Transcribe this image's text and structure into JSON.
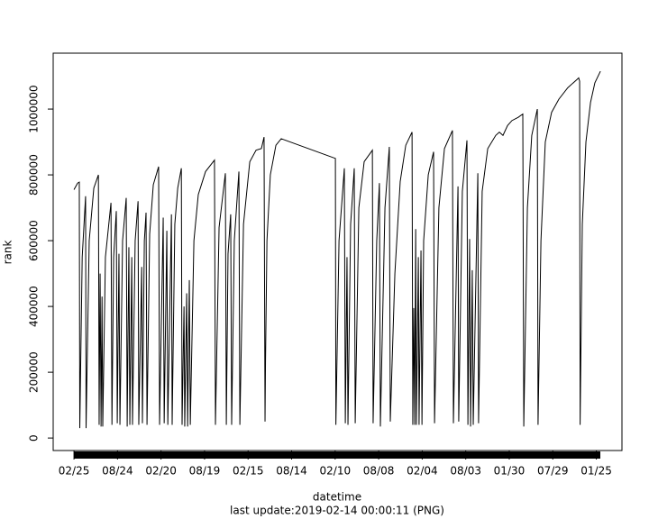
{
  "chart_data": {
    "type": "line",
    "xlabel": "datetime",
    "ylabel": "rank",
    "caption": "last update:2019-02-14 00:00:11 (PNG)",
    "xlim": [
      -86,
      2266
    ],
    "ylim": [
      -38000,
      1170000
    ],
    "xticks": [
      {
        "value": 0,
        "label": "02/25"
      },
      {
        "value": 180,
        "label": "08/24"
      },
      {
        "value": 360,
        "label": "02/20"
      },
      {
        "value": 540,
        "label": "08/19"
      },
      {
        "value": 720,
        "label": "02/15"
      },
      {
        "value": 900,
        "label": "08/14"
      },
      {
        "value": 1080,
        "label": "02/10"
      },
      {
        "value": 1260,
        "label": "08/08"
      },
      {
        "value": 1440,
        "label": "02/04"
      },
      {
        "value": 1620,
        "label": "08/03"
      },
      {
        "value": 1800,
        "label": "01/30"
      },
      {
        "value": 1980,
        "label": "07/29"
      },
      {
        "value": 2160,
        "label": "01/25"
      }
    ],
    "yticks": [
      0,
      200000,
      400000,
      600000,
      800000,
      1000000
    ],
    "series": [
      {
        "color": "#000000",
        "x": [
          0,
          15,
          22,
          24,
          34,
          48,
          50,
          63,
          82,
          101,
          104,
          108,
          112,
          116,
          119,
          130,
          153,
          157,
          164,
          175,
          179,
          186,
          190,
          201,
          216,
          220,
          227,
          231,
          239,
          242,
          253,
          265,
          268,
          280,
          283,
          291,
          298,
          302,
          313,
          328,
          350,
          354,
          369,
          373,
          384,
          388,
          403,
          406,
          417,
          429,
          444,
          447,
          455,
          458,
          466,
          470,
          477,
          481,
          496,
          514,
          544,
          581,
          585,
          600,
          626,
          630,
          637,
          648,
          652,
          663,
          682,
          686,
          701,
          727,
          753,
          775,
          786,
          790,
          792,
          798,
          812,
          835,
          857,
          1081,
          1083,
          1096,
          1118,
          1122,
          1129,
          1133,
          1144,
          1159,
          1163,
          1178,
          1200,
          1234,
          1237,
          1252,
          1263,
          1267,
          1286,
          1304,
          1308,
          1327,
          1349,
          1372,
          1398,
          1401,
          1405,
          1409,
          1413,
          1416,
          1424,
          1427,
          1435,
          1439,
          1446,
          1465,
          1487,
          1491,
          1509,
          1532,
          1565,
          1569,
          1588,
          1591,
          1606,
          1625,
          1629,
          1636,
          1640,
          1647,
          1651,
          1670,
          1673,
          1688,
          1711,
          1744,
          1759,
          1774,
          1793,
          1811,
          1837,
          1856,
          1860,
          1875,
          1893,
          1916,
          1919,
          1931,
          1949,
          1975,
          2005,
          2042,
          2080,
          2087,
          2091,
          2093,
          2102,
          2117,
          2136,
          2154,
          2177
        ],
        "values": [
          755000,
          775000,
          778000,
          30000,
          550000,
          735000,
          30000,
          600000,
          760000,
          800000,
          40000,
          500000,
          35000,
          430000,
          35000,
          550000,
          715000,
          40000,
          550000,
          690000,
          45000,
          560000,
          40000,
          600000,
          730000,
          35000,
          580000,
          40000,
          550000,
          40000,
          600000,
          720000,
          40000,
          520000,
          45000,
          600000,
          685000,
          40000,
          620000,
          770000,
          825000,
          40000,
          670000,
          45000,
          630000,
          40000,
          680000,
          40000,
          650000,
          760000,
          820000,
          40000,
          400000,
          35000,
          440000,
          35000,
          480000,
          40000,
          600000,
          740000,
          810000,
          845000,
          40000,
          640000,
          805000,
          40000,
          560000,
          680000,
          40000,
          600000,
          810000,
          40000,
          650000,
          840000,
          875000,
          880000,
          915000,
          50000,
          230000,
          600000,
          800000,
          890000,
          910000,
          850000,
          40000,
          600000,
          820000,
          45000,
          550000,
          40000,
          650000,
          820000,
          45000,
          700000,
          840000,
          875000,
          45000,
          600000,
          775000,
          35000,
          700000,
          885000,
          50000,
          500000,
          780000,
          890000,
          930000,
          40000,
          395000,
          40000,
          635000,
          40000,
          550000,
          40000,
          570000,
          40000,
          600000,
          800000,
          870000,
          45000,
          700000,
          880000,
          935000,
          45000,
          765000,
          50000,
          750000,
          905000,
          40000,
          605000,
          35000,
          510000,
          40000,
          805000,
          45000,
          750000,
          880000,
          920000,
          930000,
          920000,
          950000,
          965000,
          975000,
          985000,
          35000,
          700000,
          920000,
          1000000,
          40000,
          600000,
          900000,
          990000,
          1030000,
          1065000,
          1090000,
          1095000,
          1085000,
          40000,
          650000,
          900000,
          1020000,
          1080000,
          1115000
        ]
      }
    ]
  }
}
